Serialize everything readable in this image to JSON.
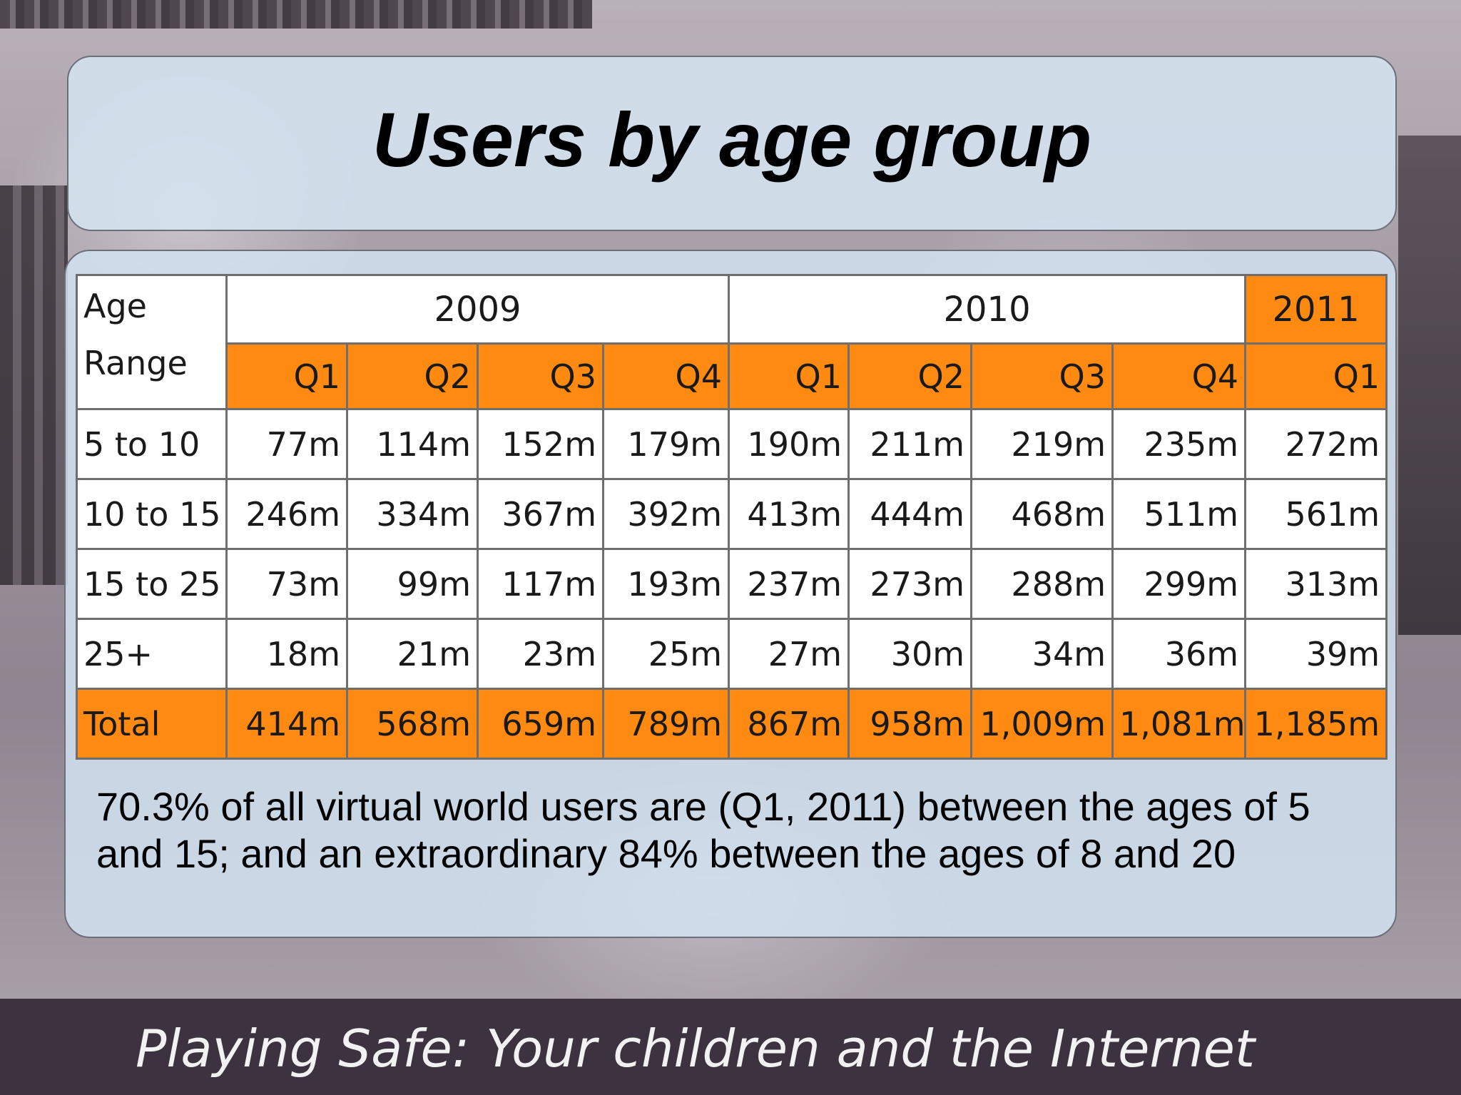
{
  "slide": {
    "title": "Users by age group",
    "note": "70.3% of all virtual world users are (Q1, 2011) between the ages of 5 and 15; and an extraordinary 84% between the ages of 8 and 20",
    "footer": "Playing Safe: Your children and the Internet"
  },
  "table": {
    "corner_label": "Age\nRange",
    "years": [
      "2009",
      "2010",
      "2011"
    ],
    "quarters": [
      "Q1",
      "Q2",
      "Q3",
      "Q4",
      "Q1",
      "Q2",
      "Q3",
      "Q4",
      "Q1"
    ],
    "rows": [
      {
        "label": "5 to 10",
        "values": [
          "77m",
          "114m",
          "152m",
          "179m",
          "190m",
          "211m",
          "219m",
          "235m",
          "272m"
        ]
      },
      {
        "label": "10 to 15",
        "values": [
          "246m",
          "334m",
          "367m",
          "392m",
          "413m",
          "444m",
          "468m",
          "511m",
          "561m"
        ]
      },
      {
        "label": "15 to 25",
        "values": [
          "73m",
          "99m",
          "117m",
          "193m",
          "237m",
          "273m",
          "288m",
          "299m",
          "313m"
        ]
      },
      {
        "label": "25+",
        "values": [
          "18m",
          "21m",
          "23m",
          "25m",
          "27m",
          "30m",
          "34m",
          "36m",
          "39m"
        ]
      },
      {
        "label": "Total",
        "values": [
          "414m",
          "568m",
          "659m",
          "789m",
          "867m",
          "958m",
          "1,009m",
          "1,081m",
          "1,185m"
        ]
      }
    ]
  },
  "colors": {
    "accent_orange": "#ff8a12",
    "panel": "#d4e4f0",
    "footer_bg": "#3d3340"
  }
}
